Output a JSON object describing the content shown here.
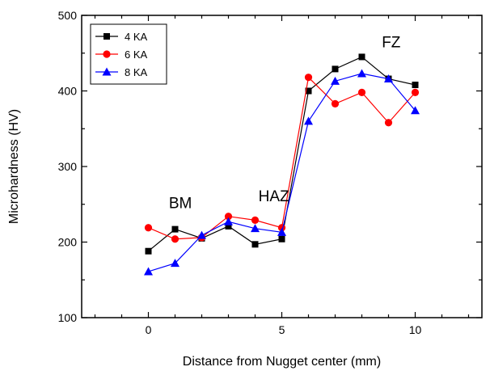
{
  "chart_data": {
    "type": "line",
    "title": "",
    "xlabel": "Distance from Nugget center (mm)",
    "ylabel": "Microhardness (HV)",
    "xlim": [
      -2.5,
      12.5
    ],
    "ylim": [
      100,
      500
    ],
    "xticks": [
      0,
      5,
      10
    ],
    "yticks": [
      100,
      200,
      300,
      400,
      500
    ],
    "grid": false,
    "legend_position": "top-left",
    "x": [
      0,
      1,
      2,
      3,
      4,
      5,
      6,
      7,
      8,
      9,
      10
    ],
    "series": [
      {
        "name": "4 KA",
        "color": "#000000",
        "marker": "square",
        "values": [
          188,
          217,
          205,
          221,
          197,
          204,
          400,
          429,
          445,
          416,
          408
        ]
      },
      {
        "name": "6 KA",
        "color": "#ff0000",
        "marker": "circle",
        "values": [
          219,
          204,
          206,
          234,
          229,
          219,
          418,
          383,
          398,
          358,
          398
        ]
      },
      {
        "name": "8 KA",
        "color": "#0000ff",
        "marker": "triangle",
        "values": [
          161,
          172,
          209,
          227,
          218,
          213,
          360,
          413,
          423,
          416,
          374
        ]
      }
    ],
    "annotations": [
      {
        "text": "BM",
        "x": 1.2,
        "y": 245
      },
      {
        "text": "HAZ",
        "x": 4.7,
        "y": 254
      },
      {
        "text": "FZ",
        "x": 9.1,
        "y": 458
      }
    ]
  }
}
